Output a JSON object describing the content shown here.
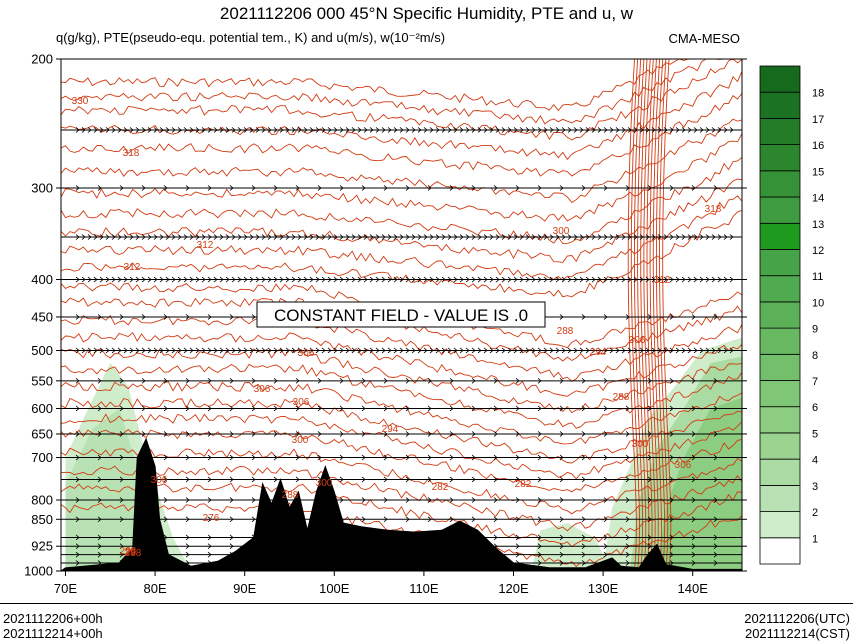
{
  "chart_data": {
    "type": "contour",
    "title": "2021112206 000 45°N Specific Humidity, PTE and u, w",
    "subtitle": "q(g/kg), PTE(pseudo-equ. potential tem., K) and u(m/s), w(10⁻²m/s)",
    "source": "CMA-MESO",
    "annotation": "CONSTANT FIELD - VALUE IS .0",
    "x_axis": {
      "ticks": [
        "70E",
        "80E",
        "90E",
        "100E",
        "110E",
        "120E",
        "130E",
        "140E"
      ],
      "range": [
        69.5,
        145.5
      ]
    },
    "y_axis": {
      "scale": "pressure (reversed)",
      "ticks": [
        200,
        300,
        400,
        450,
        500,
        550,
        600,
        650,
        700,
        800,
        850,
        925,
        1000
      ],
      "range": [
        200,
        1000
      ]
    },
    "colorbar": {
      "labels": [
        "1",
        "2",
        "3",
        "4",
        "5",
        "6",
        "7",
        "8",
        "9",
        "10",
        "11",
        "12",
        "13",
        "14",
        "15",
        "16",
        "17",
        "18"
      ],
      "colors": [
        "#ffffff",
        "#cfeccb",
        "#b9e2b4",
        "#a9dba2",
        "#9ad490",
        "#8ccd82",
        "#7fc676",
        "#74bf6b",
        "#68b862",
        "#5cb158",
        "#50aa4f",
        "#46a347",
        "#1e9b1e",
        "#3e9b40",
        "#359236",
        "#2c862d",
        "#237b27",
        "#1c7223",
        "#166a1e"
      ]
    },
    "contour_labels": [
      {
        "text": "330"
      },
      {
        "text": "318"
      },
      {
        "text": "318"
      },
      {
        "text": "312"
      },
      {
        "text": "312"
      },
      {
        "text": "312"
      },
      {
        "text": "300"
      },
      {
        "text": "306"
      },
      {
        "text": "306"
      },
      {
        "text": "306"
      },
      {
        "text": "306"
      },
      {
        "text": "300"
      },
      {
        "text": "294"
      },
      {
        "text": "288"
      },
      {
        "text": "288"
      },
      {
        "text": "294"
      },
      {
        "text": "306"
      },
      {
        "text": "300"
      },
      {
        "text": "306"
      },
      {
        "text": "282"
      },
      {
        "text": "282"
      },
      {
        "text": "276"
      },
      {
        "text": "288"
      },
      {
        "text": "288"
      },
      {
        "text": "300"
      },
      {
        "text": "298"
      },
      {
        "text": "29"
      }
    ],
    "wind_levels": [
      250,
      300,
      350,
      400,
      450,
      500,
      550,
      600,
      650,
      700,
      750,
      800,
      850,
      900,
      925,
      950,
      975
    ],
    "terrain_profile": [
      {
        "lon": 70,
        "p": 990
      },
      {
        "lon": 72,
        "p": 985
      },
      {
        "lon": 74,
        "p": 980
      },
      {
        "lon": 76,
        "p": 975
      },
      {
        "lon": 77.5,
        "p": 930
      },
      {
        "lon": 78,
        "p": 700
      },
      {
        "lon": 79,
        "p": 660
      },
      {
        "lon": 80,
        "p": 720
      },
      {
        "lon": 80.5,
        "p": 850
      },
      {
        "lon": 81.5,
        "p": 950
      },
      {
        "lon": 84,
        "p": 985
      },
      {
        "lon": 87,
        "p": 970
      },
      {
        "lon": 89,
        "p": 940
      },
      {
        "lon": 91,
        "p": 900
      },
      {
        "lon": 92,
        "p": 760
      },
      {
        "lon": 93,
        "p": 810
      },
      {
        "lon": 94,
        "p": 750
      },
      {
        "lon": 95,
        "p": 820
      },
      {
        "lon": 96,
        "p": 780
      },
      {
        "lon": 97,
        "p": 880
      },
      {
        "lon": 98,
        "p": 780
      },
      {
        "lon": 99,
        "p": 720
      },
      {
        "lon": 100,
        "p": 780
      },
      {
        "lon": 101,
        "p": 860
      },
      {
        "lon": 103,
        "p": 870
      },
      {
        "lon": 106,
        "p": 880
      },
      {
        "lon": 109,
        "p": 885
      },
      {
        "lon": 112,
        "p": 880
      },
      {
        "lon": 114,
        "p": 855
      },
      {
        "lon": 116,
        "p": 880
      },
      {
        "lon": 118,
        "p": 930
      },
      {
        "lon": 120,
        "p": 975
      },
      {
        "lon": 124,
        "p": 990
      },
      {
        "lon": 128,
        "p": 990
      },
      {
        "lon": 131,
        "p": 960
      },
      {
        "lon": 132,
        "p": 985
      },
      {
        "lon": 134,
        "p": 990
      },
      {
        "lon": 135,
        "p": 950
      },
      {
        "lon": 136,
        "p": 920
      },
      {
        "lon": 137,
        "p": 980
      },
      {
        "lon": 140,
        "p": 995
      },
      {
        "lon": 145.5,
        "p": 995
      }
    ],
    "footer": {
      "left_line1": "2021112206+00h",
      "left_line2": "2021112214+00h",
      "right_line1": "2021112206(UTC)",
      "right_line2": "2021112214(CST)"
    }
  }
}
